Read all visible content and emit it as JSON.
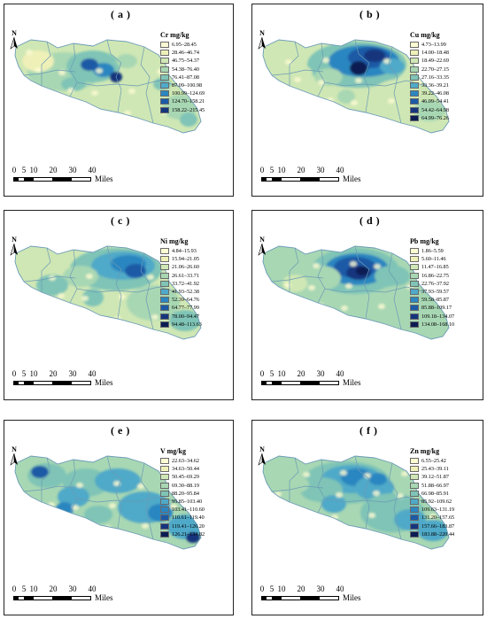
{
  "colors": {
    "c1": "#fdfbd2",
    "c2": "#eef0b8",
    "c3": "#cfe7b4",
    "c4": "#a8d7b3",
    "c5": "#7fc4b6",
    "c6": "#4fa9c8",
    "c7": "#2c86c0",
    "c8": "#1c5aa6",
    "c9": "#15357d",
    "c10": "#0b1d52",
    "outline": "#6b9bb7"
  },
  "north_letter": "N",
  "scale": {
    "ticks": [
      "0",
      "5",
      "10",
      "20",
      "30",
      "40"
    ],
    "unit": "Miles"
  },
  "panels": [
    {
      "label": "( a )",
      "title": "Cr mg/kg",
      "classes": [
        "6.95–28.45",
        "28.46–46.74",
        "46.75–54.37",
        "54.38–76.40",
        "76.41–87.08",
        "87.09–100.98",
        "100.99–124.69",
        "124.70–158.21",
        "158.22–215.45"
      ]
    },
    {
      "label": "( b )",
      "title": "Cu mg/kg",
      "classes": [
        "4.73–13.99",
        "14.00–18.48",
        "18.49–22.69",
        "22.70–27.15",
        "27.16–33.35",
        "33.36–39.21",
        "39.22–46.08",
        "46.09–54.41",
        "54.42–64.98",
        "64.99–76.26"
      ]
    },
    {
      "label": "( c )",
      "title": "Ni mg/kg",
      "classes": [
        "4.84–15.93",
        "15.94–21.05",
        "21.06–26.60",
        "26.61–33.71",
        "33.72–41.92",
        "41.93–52.38",
        "52.39–64.76",
        "64.77–77.99",
        "78.00–94.47",
        "94.48–113.63"
      ]
    },
    {
      "label": "( d )",
      "title": "Pb mg/kg",
      "classes": [
        "1.86–5.59",
        "5.60–11.46",
        "11.47–16.85",
        "16.86–22.75",
        "22.76–37.92",
        "37.93–59.57",
        "59.58–85.87",
        "85.88–109.17",
        "109.18–134.07",
        "134.08–168.10"
      ]
    },
    {
      "label": "( e )",
      "title": "V mg/kg",
      "classes": [
        "22.63–34.62",
        "34.63–50.44",
        "50.45–69.29",
        "69.30–88.19",
        "88.20–95.84",
        "95.85–103.40",
        "103.41–110.60",
        "110.61–119.40",
        "119.41–126.20",
        "126.21–134.82"
      ]
    },
    {
      "label": "( f )",
      "title": "Zn mg/kg",
      "classes": [
        "6.55–25.42",
        "25.43–39.11",
        "39.12–51.87",
        "51.88–66.97",
        "66.98–85.91",
        "85.92–109.62",
        "109.63–131.19",
        "131.20–157.65",
        "157.66–183.87",
        "183.88–220.44"
      ]
    }
  ]
}
